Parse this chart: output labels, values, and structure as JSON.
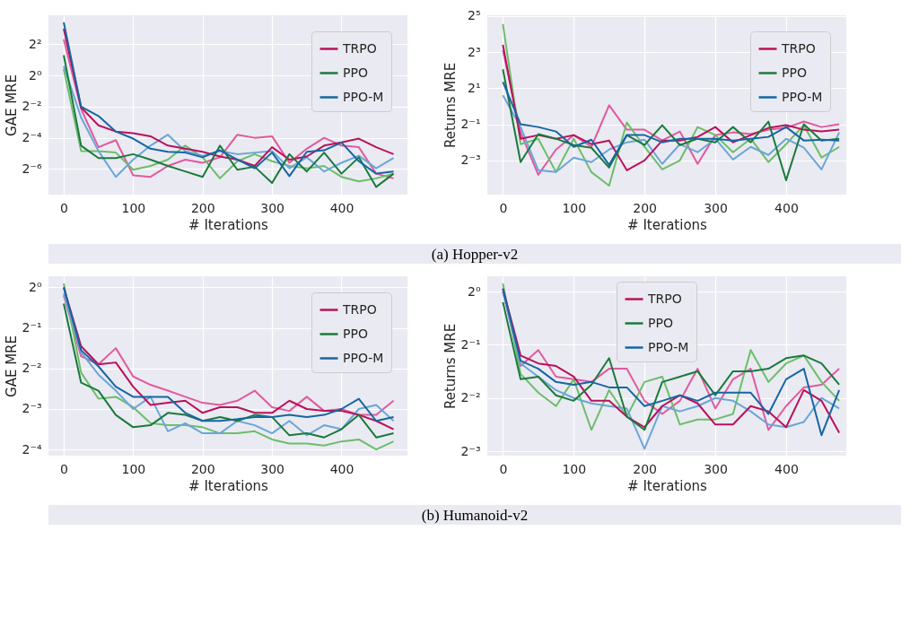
{
  "chart_data": [
    {
      "type": "line",
      "xlabel": "# Iterations",
      "ylabel": "GAE MRE",
      "log": "y",
      "grid": true,
      "legend": "top right",
      "xlim": [
        -22,
        495
      ],
      "xticks": [
        0,
        100,
        200,
        300,
        400
      ],
      "ylim": [
        0.005,
        14.5
      ],
      "yticks": [
        {
          "value": 4,
          "label": "2²"
        },
        {
          "value": 1,
          "label": "2⁰"
        },
        {
          "value": 0.25,
          "label": "2⁻²"
        },
        {
          "value": 0.0625,
          "label": "2⁻⁴"
        },
        {
          "value": 0.015625,
          "label": "2⁻⁶"
        }
      ],
      "annotations": [
        "(a) Hopper-v2"
      ],
      "x": [
        0,
        25,
        50,
        75,
        100,
        125,
        150,
        175,
        200,
        225,
        250,
        275,
        300,
        325,
        350,
        375,
        400,
        425,
        450,
        475
      ],
      "series": [
        {
          "name": "TRPO",
          "color": "#b8125a",
          "values": [
            8,
            0.241,
            0.109,
            0.0825,
            0.0769,
            0.067,
            0.0442,
            0.0385,
            0.0335,
            0.0272,
            0.0237,
            0.0179,
            0.0412,
            0.0237,
            0.0272,
            0.0442,
            0.0508,
            0.0603,
            0.0412,
            0.0302
          ]
        },
        {
          "name": "PPO",
          "color": "#1a7a3c",
          "values": [
            2.46,
            0.0442,
            0.0254,
            0.0254,
            0.0302,
            0.0237,
            0.0179,
            0.014,
            0.011,
            0.0442,
            0.0151,
            0.0173,
            0.00838,
            0.0302,
            0.014,
            0.0324,
            0.0127,
            0.0263,
            0.00704,
            0.0127
          ]
        },
        {
          "name": "PPO-M",
          "color": "#1566a3",
          "values": [
            10.6,
            0.25,
            0.165,
            0.0825,
            0.0603,
            0.0385,
            0.0335,
            0.0324,
            0.0263,
            0.0359,
            0.0237,
            0.0161,
            0.0324,
            0.0114,
            0.0335,
            0.0359,
            0.0508,
            0.0221,
            0.0127,
            0.014
          ]
        },
        {
          "color": "#e05a9e",
          "values": [
            5,
            0.225,
            0.0412,
            0.0563,
            0.0118,
            0.011,
            0.0179,
            0.0237,
            0.0206,
            0.0263,
            0.0718,
            0.0625,
            0.067,
            0.0206,
            0.0385,
            0.0625,
            0.0442,
            0.0412,
            0.0127,
            0.0103
          ]
        },
        {
          "color": "#6cbd6a",
          "values": [
            1.32,
            0.0347,
            0.0347,
            0.0324,
            0.0151,
            0.0179,
            0.0237,
            0.0442,
            0.0263,
            0.0103,
            0.0221,
            0.0302,
            0.0221,
            0.0179,
            0.0161,
            0.0179,
            0.011,
            0.00897,
            0.0103,
            0.0127
          ]
        },
        {
          "color": "#6aa6d6",
          "values": [
            1.52,
            0.154,
            0.0347,
            0.011,
            0.0237,
            0.0442,
            0.0718,
            0.0347,
            0.0282,
            0.0347,
            0.0302,
            0.0324,
            0.0347,
            0.0161,
            0.0263,
            0.014,
            0.0206,
            0.0282,
            0.0161,
            0.0254
          ]
        }
      ]
    },
    {
      "type": "line",
      "xlabel": "# Iterations",
      "ylabel": "Returns MRE",
      "log": "y",
      "grid": true,
      "legend": "top right",
      "xlim": [
        -22,
        485
      ],
      "xticks": [
        0,
        100,
        200,
        300,
        400
      ],
      "ylim": [
        0.0335,
        33
      ],
      "yticks": [
        {
          "value": 32,
          "label": "2⁵"
        },
        {
          "value": 8,
          "label": "2³"
        },
        {
          "value": 2,
          "label": "2¹"
        },
        {
          "value": 0.5,
          "label": "2⁻¹"
        },
        {
          "value": 0.125,
          "label": "2⁻³"
        }
      ],
      "x": [
        0,
        25,
        50,
        75,
        100,
        125,
        150,
        175,
        200,
        225,
        250,
        275,
        300,
        325,
        350,
        375,
        400,
        425,
        450,
        475
      ],
      "series": [
        {
          "name": "TRPO",
          "color": "#b8125a",
          "values": [
            10.6,
            0.287,
            0.33,
            0.287,
            0.33,
            0.233,
            0.268,
            0.0854,
            0.125,
            0.268,
            0.268,
            0.308,
            0.45,
            0.25,
            0.33,
            0.435,
            0.483,
            0.406,
            0.379,
            0.406
          ]
        },
        {
          "name": "PPO",
          "color": "#1a7a3c",
          "values": [
            4.14,
            0.117,
            0.342,
            0.287,
            0.225,
            0.203,
            0.0947,
            0.33,
            0.225,
            0.483,
            0.225,
            0.287,
            0.25,
            0.45,
            0.25,
            0.555,
            0.0583,
            0.5,
            0.268,
            0.287
          ]
        },
        {
          "name": "PPO-M",
          "color": "#1566a3",
          "values": [
            2.55,
            0.5,
            0.45,
            0.379,
            0.21,
            0.277,
            0.105,
            0.33,
            0.33,
            0.25,
            0.287,
            0.287,
            0.287,
            0.268,
            0.287,
            0.308,
            0.45,
            0.268,
            0.277,
            0.268
          ]
        },
        {
          "color": "#e05a9e",
          "values": [
            8.57,
            0.366,
            0.0718,
            0.189,
            0.33,
            0.21,
            1.04,
            0.406,
            0.406,
            0.268,
            0.379,
            0.109,
            0.33,
            0.366,
            0.342,
            0.406,
            0.435,
            0.555,
            0.45,
            0.5
          ]
        },
        {
          "color": "#6cbd6a",
          "values": [
            23.4,
            0.233,
            0.287,
            0.0797,
            0.287,
            0.0797,
            0.0474,
            0.536,
            0.21,
            0.0884,
            0.125,
            0.45,
            0.33,
            0.171,
            0.287,
            0.117,
            0.233,
            0.483,
            0.139,
            0.21
          ]
        },
        {
          "color": "#6aa6d6",
          "values": [
            1.52,
            0.45,
            0.0854,
            0.0797,
            0.139,
            0.117,
            0.189,
            0.25,
            0.277,
            0.109,
            0.233,
            0.171,
            0.287,
            0.129,
            0.21,
            0.154,
            0.287,
            0.203,
            0.0884,
            0.366
          ]
        }
      ]
    },
    {
      "type": "line",
      "xlabel": "# Iterations",
      "ylabel": "GAE MRE",
      "log": "y",
      "grid": true,
      "legend": "top right",
      "xlim": [
        -22,
        495
      ],
      "xticks": [
        0,
        100,
        200,
        300,
        400
      ],
      "ylim": [
        0.0563,
        1.21
      ],
      "yticks": [
        {
          "value": 1,
          "label": "2⁰"
        },
        {
          "value": 0.5,
          "label": "2⁻¹"
        },
        {
          "value": 0.25,
          "label": "2⁻²"
        },
        {
          "value": 0.125,
          "label": "2⁻³"
        },
        {
          "value": 0.0625,
          "label": "2⁻⁴"
        }
      ],
      "annotations": [
        "(b) Humanoid-v2"
      ],
      "x": [
        0,
        25,
        50,
        75,
        100,
        125,
        150,
        175,
        200,
        225,
        250,
        275,
        300,
        325,
        350,
        375,
        400,
        425,
        450,
        475
      ],
      "series": [
        {
          "name": "TRPO",
          "color": "#b8125a",
          "values": [
            1,
            0.366,
            0.268,
            0.277,
            0.183,
            0.134,
            0.139,
            0.144,
            0.117,
            0.129,
            0.129,
            0.117,
            0.117,
            0.144,
            0.125,
            0.121,
            0.121,
            0.113,
            0.102,
            0.0884
          ]
        },
        {
          "name": "PPO",
          "color": "#1a7a3c",
          "values": [
            0.758,
            0.196,
            0.171,
            0.113,
            0.0915,
            0.0947,
            0.117,
            0.113,
            0.102,
            0.109,
            0.102,
            0.113,
            0.109,
            0.0797,
            0.0825,
            0.0769,
            0.0884,
            0.113,
            0.0769,
            0.0825
          ]
        },
        {
          "name": "PPO-M",
          "color": "#1566a3",
          "values": [
            1,
            0.342,
            0.259,
            0.183,
            0.154,
            0.154,
            0.154,
            0.117,
            0.102,
            0.102,
            0.105,
            0.109,
            0.109,
            0.113,
            0.109,
            0.113,
            0.125,
            0.149,
            0.102,
            0.109
          ]
        },
        {
          "color": "#e05a9e",
          "values": [
            0.871,
            0.308,
            0.268,
            0.354,
            0.218,
            0.189,
            0.171,
            0.154,
            0.139,
            0.134,
            0.144,
            0.171,
            0.129,
            0.121,
            0.154,
            0.121,
            0.125,
            0.113,
            0.113,
            0.144
          ]
        },
        {
          "color": "#6cbd6a",
          "values": [
            1.07,
            0.233,
            0.149,
            0.154,
            0.129,
            0.0981,
            0.0947,
            0.0947,
            0.0915,
            0.0825,
            0.0825,
            0.0854,
            0.0743,
            0.0693,
            0.0693,
            0.067,
            0.0718,
            0.0743,
            0.0625,
            0.0718
          ]
        },
        {
          "color": "#6aa6d6",
          "values": [
            0.901,
            0.33,
            0.225,
            0.171,
            0.125,
            0.154,
            0.0854,
            0.0981,
            0.0825,
            0.0825,
            0.102,
            0.0947,
            0.0825,
            0.102,
            0.0797,
            0.0947,
            0.0884,
            0.125,
            0.134,
            0.102
          ]
        }
      ]
    },
    {
      "type": "line",
      "xlabel": "# Iterations",
      "ylabel": "Returns MRE",
      "log": "y",
      "grid": true,
      "legend": "top",
      "xlim": [
        -22,
        485
      ],
      "xticks": [
        0,
        100,
        200,
        300,
        400
      ],
      "ylim": [
        0.118,
        1.22
      ],
      "yticks": [
        {
          "value": 1,
          "label": "2⁰"
        },
        {
          "value": 0.5,
          "label": "2⁻¹"
        },
        {
          "value": 0.25,
          "label": "2⁻²"
        },
        {
          "value": 0.125,
          "label": "2⁻³"
        }
      ],
      "x": [
        0,
        25,
        50,
        75,
        100,
        125,
        150,
        175,
        200,
        225,
        250,
        275,
        300,
        325,
        350,
        375,
        400,
        425,
        450,
        475
      ],
      "series": [
        {
          "name": "TRPO",
          "color": "#b8125a",
          "values": [
            1.04,
            0.435,
            0.392,
            0.379,
            0.33,
            0.241,
            0.241,
            0.196,
            0.171,
            0.225,
            0.259,
            0.233,
            0.177,
            0.177,
            0.225,
            0.21,
            0.171,
            0.277,
            0.241,
            0.159
          ]
        },
        {
          "name": "PPO",
          "color": "#1a7a3c",
          "values": [
            0.871,
            0.319,
            0.33,
            0.259,
            0.241,
            0.297,
            0.42,
            0.196,
            0.165,
            0.308,
            0.33,
            0.354,
            0.259,
            0.354,
            0.354,
            0.366,
            0.42,
            0.435,
            0.392,
            0.297
          ]
        },
        {
          "name": "PPO-M",
          "color": "#1566a3",
          "values": [
            1.04,
            0.406,
            0.366,
            0.308,
            0.297,
            0.308,
            0.287,
            0.287,
            0.225,
            0.241,
            0.259,
            0.241,
            0.268,
            0.268,
            0.268,
            0.203,
            0.319,
            0.366,
            0.154,
            0.277
          ]
        },
        {
          "color": "#e05a9e",
          "values": [
            1,
            0.379,
            0.467,
            0.33,
            0.319,
            0.308,
            0.366,
            0.366,
            0.241,
            0.203,
            0.241,
            0.366,
            0.218,
            0.319,
            0.366,
            0.165,
            0.225,
            0.287,
            0.297,
            0.366
          ]
        },
        {
          "color": "#6cbd6a",
          "values": [
            1.11,
            0.342,
            0.268,
            0.225,
            0.319,
            0.165,
            0.277,
            0.196,
            0.308,
            0.33,
            0.177,
            0.189,
            0.189,
            0.203,
            0.467,
            0.308,
            0.392,
            0.435,
            0.308,
            0.241
          ]
        },
        {
          "color": "#6aa6d6",
          "values": [
            1,
            0.392,
            0.33,
            0.277,
            0.25,
            0.233,
            0.225,
            0.218,
            0.129,
            0.225,
            0.21,
            0.225,
            0.25,
            0.241,
            0.21,
            0.177,
            0.171,
            0.183,
            0.25,
            0.218
          ]
        }
      ]
    }
  ]
}
